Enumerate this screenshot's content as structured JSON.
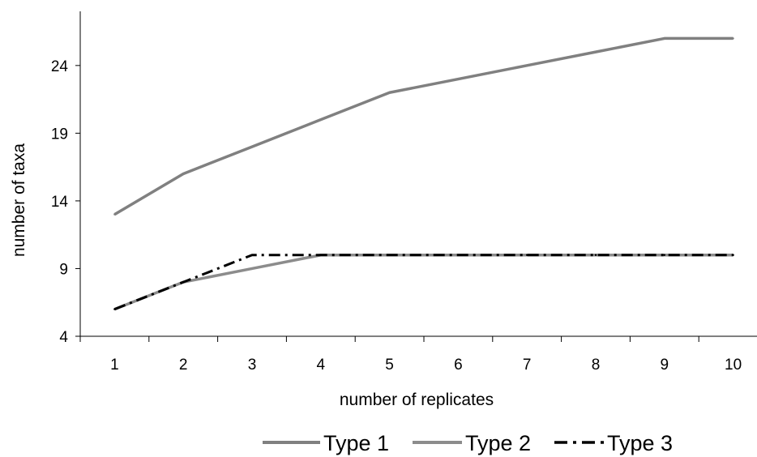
{
  "chart_data": {
    "type": "line",
    "title": "",
    "xlabel": "number of replicates",
    "ylabel": "number of taxa",
    "x": [
      1,
      2,
      3,
      4,
      5,
      6,
      7,
      8,
      9,
      10
    ],
    "ylim": [
      4,
      28
    ],
    "yticks": [
      4,
      9,
      14,
      19,
      24
    ],
    "grid": false,
    "legend_position": "bottom",
    "series": [
      {
        "name": "Type 1",
        "values": [
          13,
          16,
          18,
          20,
          22,
          23,
          24,
          25,
          26,
          26
        ],
        "color": "#808080",
        "dash": "solid"
      },
      {
        "name": "Type 2",
        "values": [
          6,
          8,
          9,
          10,
          10,
          10,
          10,
          10,
          10,
          10
        ],
        "color": "#8c8c8c",
        "dash": "solid"
      },
      {
        "name": "Type 3",
        "values": [
          6,
          8,
          10,
          10,
          10,
          10,
          10,
          10,
          10,
          10
        ],
        "color": "#000000",
        "dash": "dashdot"
      }
    ]
  }
}
